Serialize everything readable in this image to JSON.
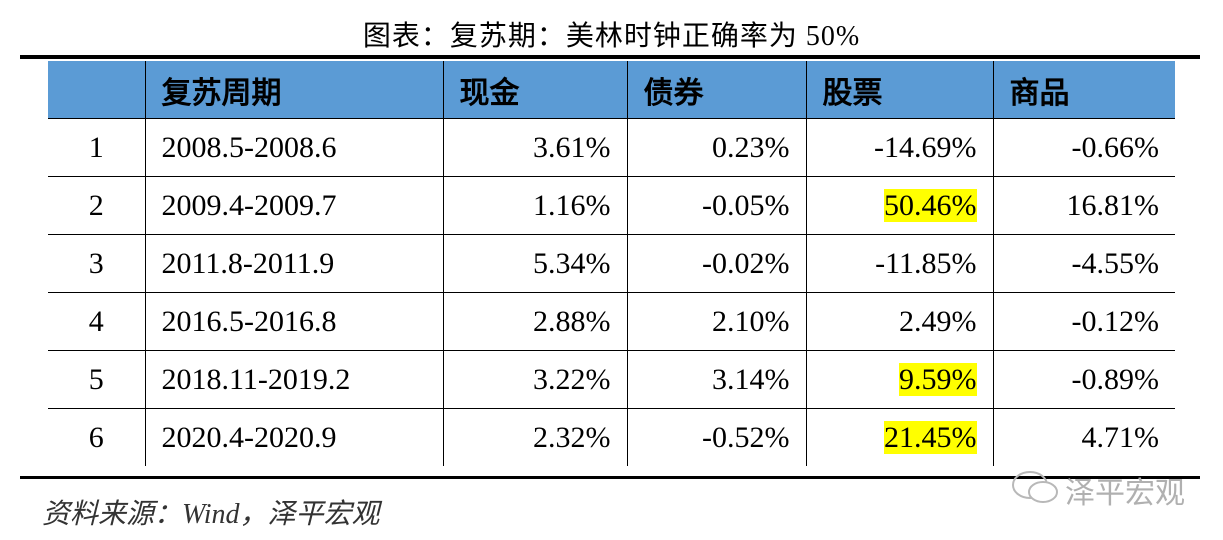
{
  "header": {
    "title": "图表：复苏期：美林时钟正确率为 50%"
  },
  "table": {
    "columns": [
      "复苏周期",
      "现金",
      "债券",
      "股票",
      "商品"
    ],
    "rows": [
      [
        "1",
        "2008.5-2008.6",
        "3.61%",
        "0.23%",
        "-14.69%",
        "-0.66%"
      ],
      [
        "2",
        "2009.4-2009.7",
        "1.16%",
        "-0.05%",
        "50.46%",
        "16.81%"
      ],
      [
        "3",
        "2011.8-2011.9",
        "5.34%",
        "-0.02%",
        "-11.85%",
        "-4.55%"
      ],
      [
        "4",
        "2016.5-2016.8",
        "2.88%",
        "2.10%",
        "2.49%",
        "-0.12%"
      ],
      [
        "5",
        "2018.11-2019.2",
        "3.22%",
        "3.14%",
        "9.59%",
        "-0.89%"
      ],
      [
        "6",
        "2020.4-2020.9",
        "2.32%",
        "-0.52%",
        "21.45%",
        "4.71%"
      ]
    ]
  },
  "footer": {
    "source": "资料来源：Wind，泽平宏观",
    "watermark": "泽平宏观"
  }
}
